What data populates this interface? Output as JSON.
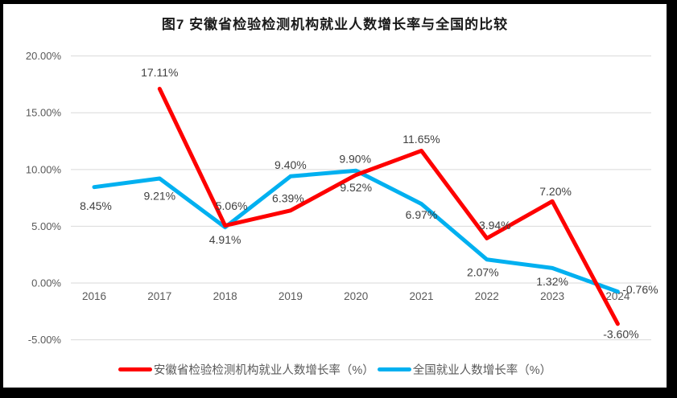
{
  "title": "图7 安徽省检验检测机构就业人数增长率与全国的比较",
  "chart_data": {
    "type": "line",
    "title": "图7 安徽省检验检测机构就业人数增长率与全国的比较",
    "categories": [
      "2016",
      "2017",
      "2018",
      "2019",
      "2020",
      "2021",
      "2022",
      "2023",
      "2024"
    ],
    "series": [
      {
        "name": "安徽省检验检测机构就业人数增长率（%）",
        "color": "#fe0000",
        "values": [
          null,
          17.11,
          5.06,
          6.39,
          9.52,
          11.65,
          3.94,
          7.2,
          -3.6
        ],
        "labels": [
          "",
          "17.11%",
          "5.06%",
          "6.39%",
          "9.52%",
          "11.65%",
          "3.94%",
          "7.20%",
          "-3.60%"
        ],
        "label_offsets": [
          [
            0,
            0
          ],
          [
            0,
            -20
          ],
          [
            8,
            -24
          ],
          [
            -3,
            -15
          ],
          [
            0,
            16
          ],
          [
            0,
            -14
          ],
          [
            10,
            -16
          ],
          [
            4,
            -12
          ],
          [
            4,
            13
          ]
        ]
      },
      {
        "name": "全国就业人数增长率（%）",
        "color": "#00b0f0",
        "values": [
          8.45,
          9.21,
          4.91,
          9.4,
          9.9,
          6.97,
          2.07,
          1.32,
          -0.76
        ],
        "labels": [
          "8.45%",
          "9.21%",
          "4.91%",
          "9.40%",
          "9.90%",
          "6.97%",
          "2.07%",
          "1.32%",
          "-0.76%"
        ],
        "label_offsets": [
          [
            2,
            24
          ],
          [
            0,
            22
          ],
          [
            0,
            16
          ],
          [
            0,
            -14
          ],
          [
            -1,
            -14
          ],
          [
            0,
            14
          ],
          [
            -5,
            16
          ],
          [
            0,
            17
          ],
          [
            28,
            -2
          ]
        ]
      }
    ],
    "y_ticks": [
      "20.00%",
      "15.00%",
      "10.00%",
      "5.00%",
      "0.00%",
      "-5.00%"
    ],
    "y_tick_values": [
      20,
      15,
      10,
      5,
      0,
      -5
    ],
    "ylim": [
      -5,
      20
    ],
    "xlabel": "",
    "ylabel": "",
    "grid": true,
    "legend_position": "bottom"
  }
}
